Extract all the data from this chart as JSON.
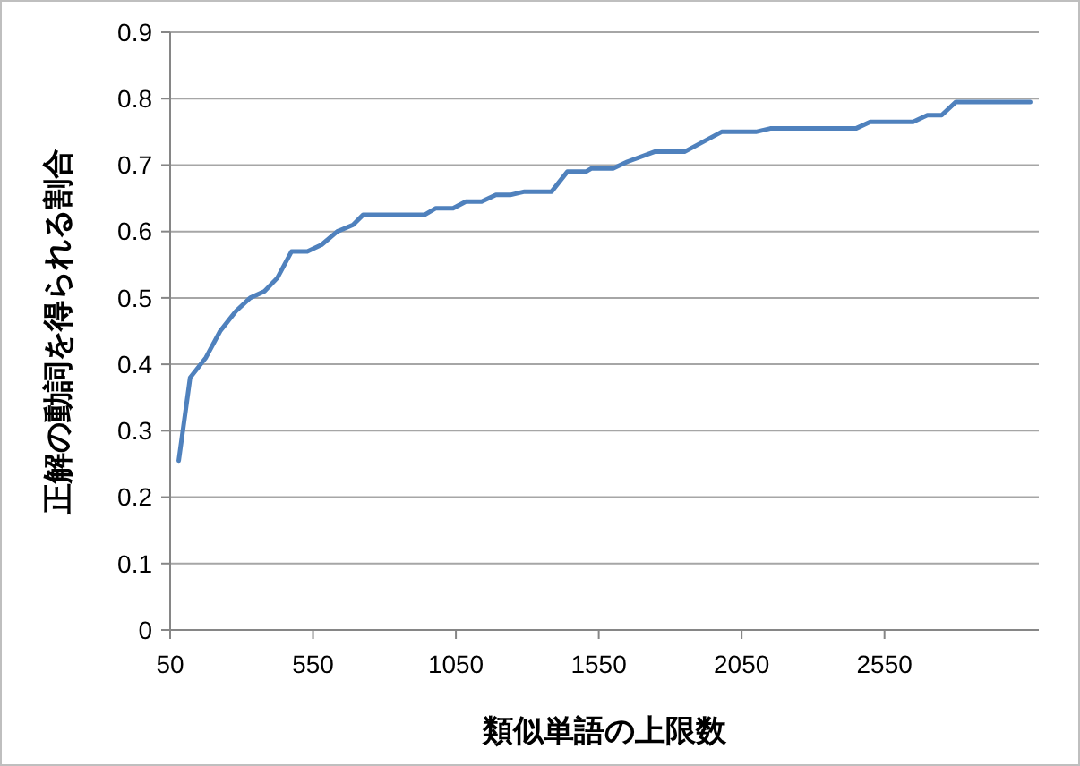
{
  "chart_data": {
    "type": "line",
    "xlabel": "類似単語の上限数",
    "ylabel": "正解の動詞を得られる割合",
    "x": [
      80,
      120,
      175,
      225,
      280,
      330,
      380,
      425,
      475,
      530,
      580,
      635,
      690,
      725,
      940,
      980,
      1040,
      1085,
      1140,
      1190,
      1240,
      1290,
      1385,
      1440,
      1505,
      1525,
      1600,
      1650,
      1745,
      1850,
      1980,
      2100,
      2150,
      2450,
      2500,
      2650,
      2700,
      2750,
      2800,
      3060
    ],
    "series": [
      {
        "color": "#4f81bd",
        "values": [
          0.255,
          0.38,
          0.41,
          0.45,
          0.48,
          0.5,
          0.51,
          0.53,
          0.57,
          0.57,
          0.58,
          0.6,
          0.61,
          0.625,
          0.625,
          0.635,
          0.635,
          0.645,
          0.645,
          0.655,
          0.655,
          0.66,
          0.66,
          0.69,
          0.69,
          0.695,
          0.695,
          0.705,
          0.72,
          0.72,
          0.75,
          0.75,
          0.755,
          0.755,
          0.765,
          0.765,
          0.775,
          0.775,
          0.795,
          0.795
        ]
      }
    ],
    "xlim": [
      50,
      3090
    ],
    "xticks": [
      50,
      550,
      1050,
      1550,
      2050,
      2550
    ],
    "ylim": [
      0,
      0.9
    ],
    "yticks": [
      0,
      0.1,
      0.2,
      0.3,
      0.4,
      0.5,
      0.6,
      0.7,
      0.8,
      0.9
    ],
    "grid": "y",
    "marker": "none",
    "line_style": "solid"
  }
}
